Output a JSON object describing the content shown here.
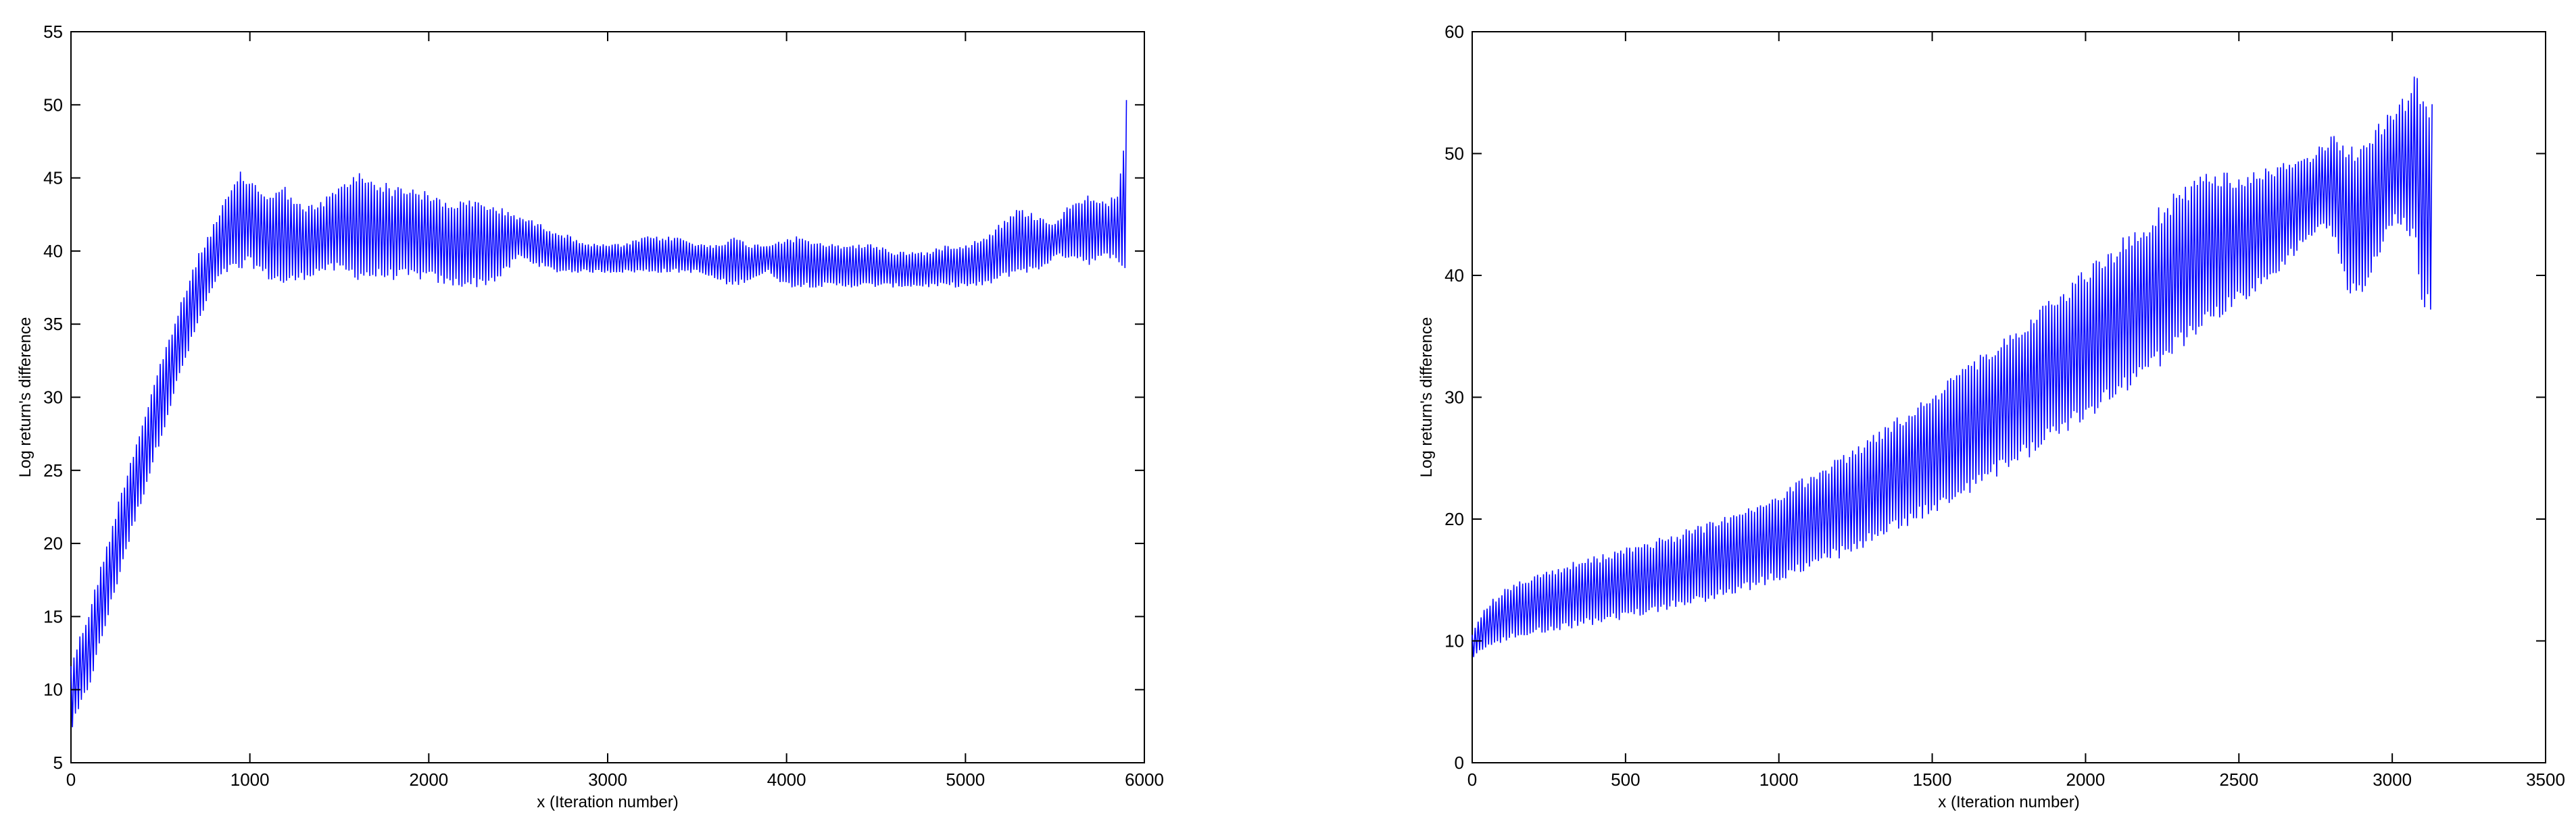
{
  "chart_data": [
    {
      "type": "line",
      "title": "",
      "xlabel": "x (Iteration number)",
      "ylabel": "Log return's difference",
      "xlim": [
        0,
        6000
      ],
      "ylim": [
        5,
        55
      ],
      "xticks": [
        0,
        1000,
        2000,
        3000,
        4000,
        5000,
        6000
      ],
      "yticks": [
        5,
        10,
        15,
        20,
        25,
        30,
        35,
        40,
        45,
        50,
        55
      ],
      "grid": false,
      "line_color": "#0000ff",
      "series": [
        {
          "style": "oscillating band",
          "x": [
            0,
            100,
            200,
            300,
            400,
            500,
            600,
            700,
            800,
            880,
            950,
            1000,
            1100,
            1200,
            1300,
            1400,
            1500,
            1600,
            1700,
            1800,
            1900,
            2000,
            2100,
            2200,
            2300,
            2400,
            2500,
            2600,
            2700,
            2800,
            2900,
            3000,
            3100,
            3200,
            3300,
            3400,
            3500,
            3600,
            3700,
            3800,
            3900,
            4000,
            4100,
            4200,
            4300,
            4400,
            4500,
            4600,
            4700,
            4800,
            4900,
            5000,
            5100,
            5200,
            5300,
            5400,
            5500,
            5600,
            5700,
            5800,
            5850,
            5880,
            5900
          ],
          "upper": [
            12.0,
            15.5,
            20.0,
            24.5,
            28.5,
            32.5,
            36.0,
            39.5,
            42.0,
            44.0,
            45.5,
            45.0,
            44.0,
            44.5,
            43.0,
            43.5,
            44.5,
            45.5,
            45.0,
            44.5,
            44.5,
            44.0,
            43.5,
            43.5,
            43.5,
            43.0,
            42.5,
            42.0,
            41.5,
            41.0,
            40.5,
            40.5,
            40.5,
            41.0,
            41.0,
            41.0,
            40.5,
            40.5,
            41.0,
            40.5,
            40.5,
            41.0,
            41.0,
            40.5,
            40.5,
            40.5,
            40.5,
            40.0,
            40.0,
            40.0,
            40.5,
            40.5,
            41.0,
            42.0,
            43.0,
            42.5,
            42.0,
            43.5,
            44.0,
            43.5,
            44.0,
            46.5,
            50.5
          ],
          "lower": [
            7.0,
            10.0,
            14.5,
            19.0,
            23.0,
            27.0,
            31.0,
            34.5,
            37.5,
            38.5,
            38.5,
            39.0,
            38.0,
            37.5,
            38.0,
            38.5,
            38.5,
            38.0,
            38.0,
            38.0,
            38.0,
            38.0,
            37.5,
            37.5,
            37.5,
            38.0,
            39.5,
            39.0,
            38.5,
            38.5,
            38.5,
            38.5,
            38.5,
            38.5,
            38.5,
            38.5,
            38.5,
            38.0,
            37.5,
            38.0,
            38.5,
            37.5,
            37.5,
            37.5,
            37.5,
            37.5,
            37.5,
            37.5,
            37.5,
            37.5,
            37.5,
            37.5,
            37.5,
            38.0,
            38.5,
            38.5,
            39.5,
            39.5,
            39.0,
            39.5,
            39.5,
            38.0,
            37.5
          ]
        }
      ]
    },
    {
      "type": "line",
      "title": "",
      "xlabel": "x (Iteration number)",
      "ylabel": "Log return's difference",
      "xlim": [
        0,
        3500
      ],
      "ylim": [
        0,
        60
      ],
      "xticks": [
        0,
        500,
        1000,
        1500,
        2000,
        2500,
        3000,
        3500
      ],
      "yticks": [
        0,
        10,
        20,
        30,
        40,
        50,
        60
      ],
      "grid": false,
      "line_color": "#0000ff",
      "series": [
        {
          "style": "oscillating band",
          "x": [
            0,
            20,
            50,
            100,
            200,
            300,
            400,
            500,
            600,
            700,
            800,
            900,
            1000,
            1100,
            1200,
            1300,
            1400,
            1500,
            1600,
            1700,
            1800,
            1900,
            2000,
            2100,
            2200,
            2300,
            2400,
            2500,
            2600,
            2700,
            2780,
            2820,
            2850,
            2900,
            2950,
            3000,
            3050,
            3080,
            3100,
            3130
          ],
          "upper": [
            10.5,
            12.0,
            13.0,
            14.3,
            15.5,
            16.3,
            17.0,
            17.7,
            18.4,
            19.2,
            20.0,
            21.0,
            22.3,
            23.7,
            25.2,
            26.9,
            28.6,
            30.5,
            32.4,
            34.4,
            36.4,
            38.5,
            40.6,
            42.7,
            44.8,
            47.0,
            48.5,
            48.5,
            49.0,
            49.5,
            51.0,
            52.0,
            50.5,
            51.0,
            52.5,
            53.5,
            55.0,
            57.5,
            54.5,
            54.5
          ],
          "lower": [
            8.5,
            8.8,
            9.3,
            9.9,
            10.4,
            10.9,
            11.3,
            11.8,
            12.3,
            12.8,
            13.4,
            14.1,
            14.9,
            15.8,
            16.8,
            17.9,
            19.1,
            20.4,
            21.8,
            23.2,
            24.8,
            26.4,
            28.1,
            29.8,
            31.6,
            33.5,
            35.5,
            37.5,
            39.5,
            42.0,
            44.0,
            42.0,
            38.5,
            37.5,
            41.0,
            44.0,
            43.5,
            41.5,
            37.0,
            36.5
          ]
        }
      ]
    }
  ]
}
